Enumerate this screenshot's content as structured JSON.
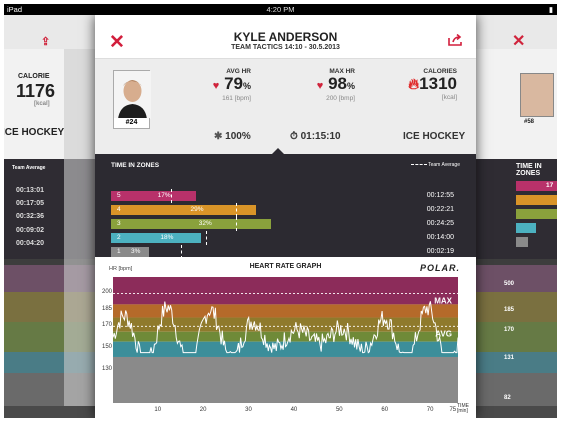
{
  "status_bar": {
    "device": "iPad",
    "time": "4:20 PM"
  },
  "header": {
    "name": "KYLE ANDERSON",
    "subtitle": "TEAM TACTICS 14:10 - 30.5.2013"
  },
  "player": {
    "number": "#24"
  },
  "stats": {
    "avg_hr": {
      "label": "AVG HR",
      "value": "79",
      "unit_pct": "%",
      "sub": "161 [bpm]"
    },
    "max_hr": {
      "label": "MAX HR",
      "value": "98",
      "unit_pct": "%",
      "sub": "200 [bmp]"
    },
    "calories": {
      "label": "CALORIES",
      "value": "1310",
      "sub": "[kcal]"
    },
    "training_load": "100%",
    "duration": "01:15:10",
    "sport": "ICE HOCKEY"
  },
  "zones": {
    "title": "TIME IN ZONES",
    "legend": "Team Average",
    "items": [
      {
        "zone": "5",
        "percent": "17%",
        "time": "00:12:55",
        "fraction": 0.17,
        "avg": 0.12,
        "color": "#b8316a"
      },
      {
        "zone": "4",
        "percent": "29%",
        "time": "00:22:21",
        "fraction": 0.29,
        "avg": 0.25,
        "color": "#d99428"
      },
      {
        "zone": "3",
        "percent": "32%",
        "time": "00:24:25",
        "fraction": 0.32,
        "avg": 0.25,
        "color": "#8aa13c"
      },
      {
        "zone": "2",
        "percent": "18%",
        "time": "00:14:00",
        "fraction": 0.18,
        "avg": 0.19,
        "color": "#4cb1c0"
      },
      {
        "zone": "1",
        "percent": "3%",
        "time": "00:02:19",
        "fraction": 0.03,
        "avg": 0.14,
        "color": "#8a8a8a"
      }
    ]
  },
  "hr_graph": {
    "title": "HEART RATE GRAPH",
    "brand": "POLAR.",
    "y_unit": "HR [bpm]",
    "x_unit_1": "TIME",
    "x_unit_2": "[min]",
    "max_label": "MAX",
    "avg_label": "AVG",
    "y_ticks": [
      "200",
      "185",
      "170",
      "150",
      "130"
    ],
    "x_ticks": [
      "10",
      "20",
      "30",
      "40",
      "50",
      "60",
      "70",
      "75"
    ]
  },
  "background": {
    "left": {
      "calorie_label": "CALORIE",
      "calorie_value": "1176",
      "calorie_unit": "[kcal]",
      "sport": "ICE HOCKEY",
      "team_avg": "Team Average",
      "times": [
        "00:13:01",
        "00:17:05",
        "00:32:36",
        "00:09:02",
        "00:04:20"
      ]
    },
    "right": {
      "number": "#58",
      "zones_title": "TIME IN ZONES",
      "pct": "17",
      "hr_ticks": [
        "500",
        "185",
        "170",
        "131",
        "82"
      ]
    }
  },
  "colors": {
    "accent": "#d21e3c",
    "dark": "#2c2a31"
  }
}
